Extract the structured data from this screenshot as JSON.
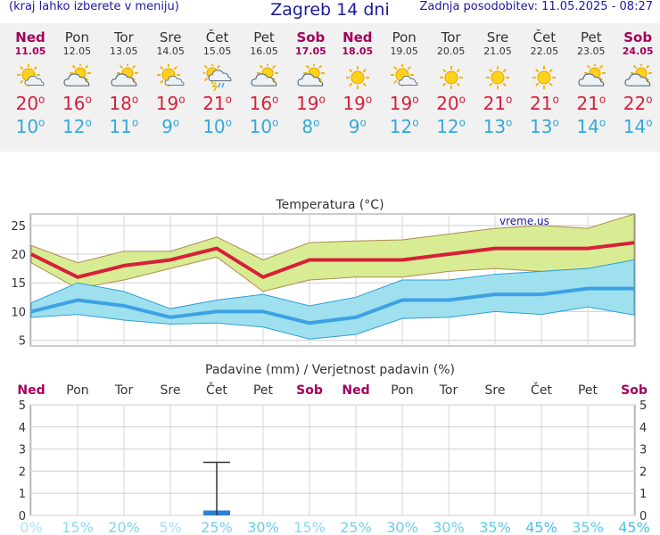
{
  "header": {
    "left_note": "(kraj lahko izberete v meniju)",
    "title": "Zagreb 14 dni",
    "updated": "Zadnja posodobitev: 11.05.2025 - 08:27"
  },
  "days": [
    {
      "name": "Ned",
      "date": "11.05",
      "icon": "sun-cloud-icon",
      "max": "20",
      "min": "10",
      "weekend": true
    },
    {
      "name": "Pon",
      "date": "12.05",
      "icon": "cloud-sun-icon",
      "max": "16",
      "min": "12",
      "weekend": false
    },
    {
      "name": "Tor",
      "date": "13.05",
      "icon": "cloud-sun-icon",
      "max": "18",
      "min": "11",
      "weekend": false
    },
    {
      "name": "Sre",
      "date": "14.05",
      "icon": "sun-cloud-icon",
      "max": "19",
      "min": "9",
      "weekend": false
    },
    {
      "name": "Čet",
      "date": "15.05",
      "icon": "thunder-rain-icon",
      "max": "21",
      "min": "10",
      "weekend": false
    },
    {
      "name": "Pet",
      "date": "16.05",
      "icon": "cloud-sun-icon",
      "max": "16",
      "min": "10",
      "weekend": false
    },
    {
      "name": "Sob",
      "date": "17.05",
      "icon": "cloud-sun-icon",
      "max": "19",
      "min": "8",
      "weekend": true
    },
    {
      "name": "Ned",
      "date": "18.05",
      "icon": "sun-icon",
      "max": "19",
      "min": "9",
      "weekend": true
    },
    {
      "name": "Pon",
      "date": "19.05",
      "icon": "sun-cloud-icon",
      "max": "19",
      "min": "12",
      "weekend": false
    },
    {
      "name": "Tor",
      "date": "20.05",
      "icon": "sun-icon",
      "max": "20",
      "min": "12",
      "weekend": false
    },
    {
      "name": "Sre",
      "date": "21.05",
      "icon": "sun-icon",
      "max": "21",
      "min": "13",
      "weekend": false
    },
    {
      "name": "Čet",
      "date": "22.05",
      "icon": "sun-icon",
      "max": "21",
      "min": "13",
      "weekend": false
    },
    {
      "name": "Pet",
      "date": "23.05",
      "icon": "cloud-sun-icon",
      "max": "21",
      "min": "14",
      "weekend": false
    },
    {
      "name": "Sob",
      "date": "24.05",
      "icon": "cloud-sun-icon",
      "max": "22",
      "min": "14",
      "weekend": true
    }
  ],
  "degree_symbol": "o",
  "colors": {
    "max_temp": "#d6203a",
    "min_temp": "#35a8dc",
    "weekend": "#a3005b",
    "max_band": "#d8ec93",
    "min_band": "#9fe0ef",
    "pop_text": "#47c1ea",
    "precip_bar": "#2a80d8"
  },
  "chart_data": [
    {
      "type": "line",
      "title": "Temperatura (°C)",
      "watermark": "vreme.us",
      "ylim": [
        4,
        27
      ],
      "yticks": [
        5,
        10,
        15,
        20,
        25
      ],
      "grid": true,
      "series": [
        {
          "key": "max",
          "values": [
            20,
            16,
            18,
            19,
            21,
            16,
            19,
            19,
            19,
            20,
            21,
            21,
            21,
            22
          ]
        },
        {
          "key": "max_upper",
          "values": [
            21.5,
            18.5,
            20.5,
            20.5,
            23,
            19,
            22,
            22.3,
            22.5,
            23.5,
            24.5,
            25,
            24.5,
            27
          ]
        },
        {
          "key": "max_lower",
          "values": [
            18.5,
            14,
            15.5,
            17.5,
            19.5,
            13.5,
            15.5,
            16,
            16,
            17,
            17.5,
            17,
            17.5,
            18
          ]
        },
        {
          "key": "min",
          "values": [
            10,
            12,
            11,
            9,
            10,
            10,
            8,
            9,
            12,
            12,
            13,
            13,
            14,
            14
          ]
        },
        {
          "key": "min_upper",
          "values": [
            11.5,
            15,
            13.5,
            10.5,
            12,
            13,
            11,
            12.5,
            15.5,
            15.5,
            16.5,
            17,
            17.5,
            19
          ]
        },
        {
          "key": "min_lower",
          "values": [
            9,
            9.5,
            8.5,
            7.8,
            8,
            7.3,
            5.2,
            6,
            8.8,
            9,
            10,
            9.5,
            10.8,
            9.4
          ]
        }
      ]
    },
    {
      "type": "bar",
      "title": "Padavine (mm) / Verjetnost padavin (%)",
      "ylim": [
        0,
        5
      ],
      "yticks": [
        0,
        1,
        2,
        3,
        4,
        5
      ],
      "categories": [
        "Ned",
        "Pon",
        "Tor",
        "Sre",
        "Čet",
        "Pet",
        "Sob",
        "Ned",
        "Pon",
        "Tor",
        "Sre",
        "Čet",
        "Pet",
        "Sob"
      ],
      "values": [
        0,
        0,
        0,
        0,
        0.1,
        0,
        0,
        0,
        0,
        0,
        0,
        0,
        0,
        0
      ],
      "error_high": [
        null,
        null,
        null,
        null,
        2.4,
        null,
        null,
        null,
        null,
        null,
        null,
        null,
        null,
        null
      ],
      "probability": [
        "0%",
        "15%",
        "20%",
        "5%",
        "25%",
        "30%",
        "15%",
        "25%",
        "30%",
        "30%",
        "35%",
        "45%",
        "35%",
        "45%"
      ]
    }
  ]
}
